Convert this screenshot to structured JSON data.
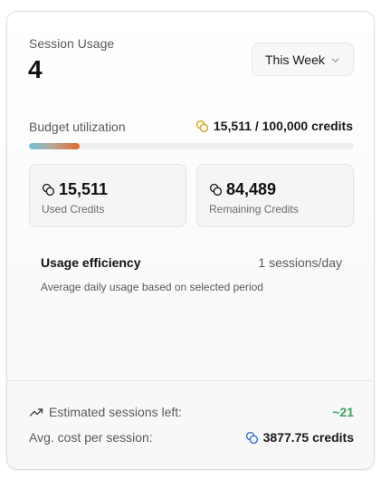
{
  "session": {
    "label": "Session Usage",
    "count": "4"
  },
  "period": {
    "selected": "This Week"
  },
  "budget": {
    "label": "Budget utilization",
    "value_text": "15,511 / 100,000 credits",
    "used_fraction": 0.155
  },
  "stats": {
    "used": {
      "value": "15,511",
      "label": "Used Credits"
    },
    "remaining": {
      "value": "84,489",
      "label": "Remaining Credits"
    }
  },
  "efficiency": {
    "title": "Usage efficiency",
    "value": "1 sessions/day",
    "description": "Average daily usage based on selected period"
  },
  "footer": {
    "estimated": {
      "label": "Estimated sessions left:",
      "value": "~21"
    },
    "avg_cost": {
      "label": "Avg. cost per session:",
      "value": "3877.75 credits"
    }
  },
  "icons": {
    "budget": "coins-icon",
    "used": "coins-icon",
    "remaining": "coins-icon",
    "estimated": "trending-up-icon",
    "avg_cost": "coins-icon",
    "select": "chevron-down-icon"
  },
  "colors": {
    "coin_gold": "#d9a21b",
    "coin_dark": "#222222",
    "coin_blue": "#3b6fd8",
    "positive": "#3ba55c"
  }
}
